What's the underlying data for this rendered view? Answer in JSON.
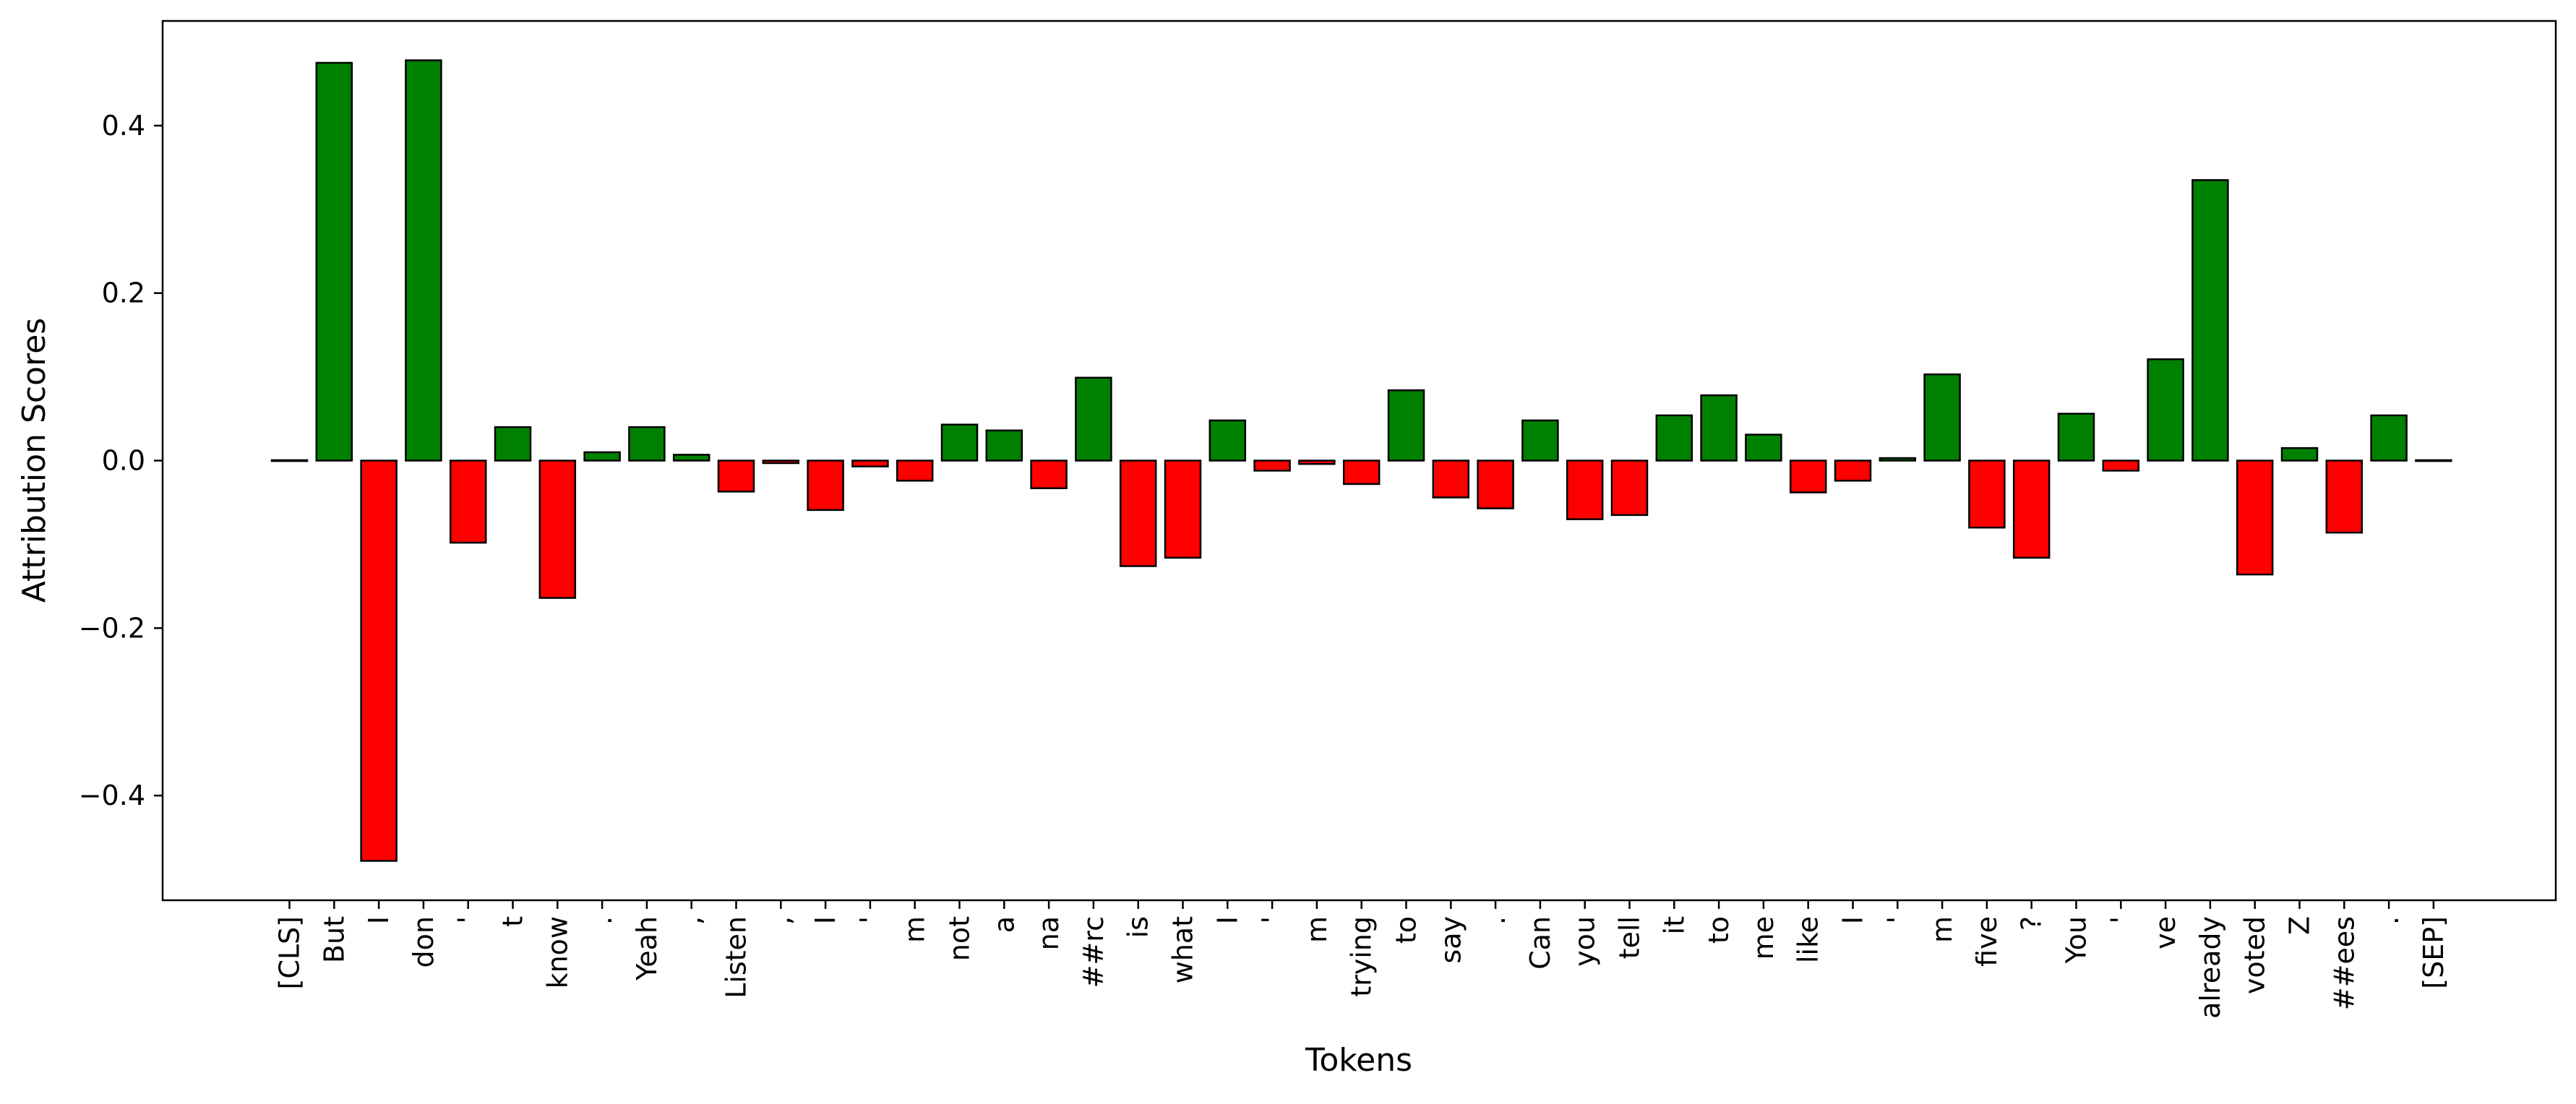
{
  "chart_data": {
    "type": "bar",
    "title": "",
    "xlabel": "Tokens",
    "ylabel": "Attribution Scores",
    "ylim": [
      -0.525,
      0.525
    ],
    "yticks": [
      -0.4,
      -0.2,
      0.0,
      0.2,
      0.4
    ],
    "ytick_labels": [
      "−0.4",
      "−0.2",
      "0.0",
      "0.2",
      "0.4"
    ],
    "grid": false,
    "legend": false,
    "colors": {
      "positive": "#008000",
      "negative": "#ff0000",
      "edge": "#000000"
    },
    "categories": [
      "[CLS]",
      "But",
      "I",
      "don",
      "'",
      "t",
      "know",
      ".",
      "Yeah",
      ",",
      "Listen",
      ",",
      "I",
      "'",
      "m",
      "not",
      "a",
      "na",
      "##rc",
      "is",
      "what",
      "I",
      "'",
      "m",
      "trying",
      "to",
      "say",
      ".",
      "Can",
      "you",
      "tell",
      "it",
      "to",
      "me",
      "like",
      "I",
      "'",
      "m",
      "five",
      "?",
      "You",
      "'",
      "ve",
      "already",
      "voted",
      "Z",
      "##ees",
      ".",
      "[SEP]"
    ],
    "values": [
      0.0,
      0.475,
      -0.478,
      0.478,
      -0.098,
      0.04,
      -0.164,
      0.01,
      0.04,
      0.007,
      -0.037,
      -0.003,
      -0.059,
      -0.007,
      -0.024,
      0.043,
      0.036,
      -0.033,
      0.099,
      -0.126,
      -0.116,
      0.048,
      -0.012,
      -0.004,
      -0.028,
      0.084,
      -0.044,
      -0.057,
      0.048,
      -0.07,
      -0.065,
      0.054,
      0.078,
      0.031,
      -0.038,
      -0.024,
      0.003,
      0.103,
      -0.08,
      -0.116,
      0.056,
      -0.012,
      0.121,
      0.335,
      -0.136,
      0.015,
      -0.086,
      0.054,
      0.0
    ]
  }
}
